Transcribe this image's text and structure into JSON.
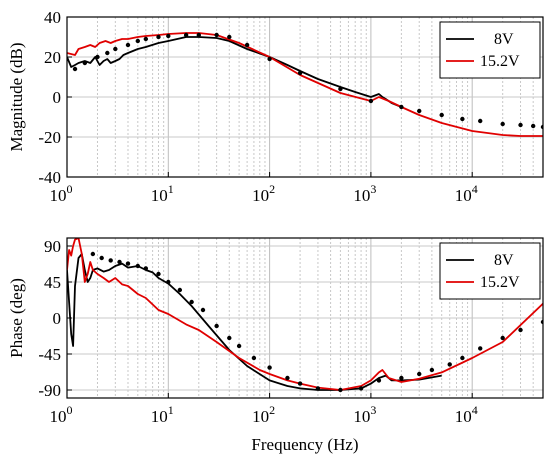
{
  "chart_data": [
    {
      "type": "line",
      "ylabel": "Magnitude (dB)",
      "xlabel": "",
      "xscale": "log",
      "xlim": [
        1,
        50000
      ],
      "ylim": [
        -40,
        40
      ],
      "yticks": [
        "40",
        "20",
        "0",
        "-20",
        "-40"
      ],
      "xticks": [
        {
          "base": "10",
          "exp": "0"
        },
        {
          "base": "10",
          "exp": "1"
        },
        {
          "base": "10",
          "exp": "2"
        },
        {
          "base": "10",
          "exp": "3"
        },
        {
          "base": "10",
          "exp": "4"
        }
      ],
      "grid": true,
      "legend_position": "top-right",
      "series": [
        {
          "name": "8V",
          "color": "#000000",
          "style": "line",
          "x": [
            1,
            1.1,
            1.2,
            1.3,
            1.5,
            1.7,
            1.9,
            2.1,
            2.3,
            2.5,
            2.7,
            3,
            3.3,
            3.6,
            4,
            5,
            6,
            8,
            10,
            15,
            20,
            30,
            40,
            60,
            100,
            150,
            200,
            300,
            500,
            700,
            1000,
            1200,
            1300,
            1400,
            1600,
            2000
          ],
          "y": [
            20,
            15,
            16,
            17,
            18,
            17,
            20,
            16,
            18,
            19,
            17,
            18,
            19,
            21,
            22,
            24,
            25,
            27,
            28,
            30,
            30,
            29.5,
            28,
            24,
            20,
            16,
            13,
            9,
            5,
            2.5,
            0,
            1.5,
            0,
            -1,
            -3,
            -5
          ]
        },
        {
          "name": "15.2V",
          "color": "#e00000",
          "style": "line",
          "x": [
            1,
            1.2,
            1.3,
            1.5,
            1.7,
            1.9,
            2.1,
            2.4,
            2.7,
            3,
            3.5,
            4,
            5,
            6,
            8,
            10,
            15,
            20,
            30,
            50,
            100,
            200,
            500,
            1000,
            1200,
            1500,
            2000,
            3000,
            5000,
            10000,
            20000,
            30000,
            50000
          ],
          "y": [
            22,
            21,
            24,
            25,
            26,
            25,
            27,
            28,
            27,
            28,
            29,
            29,
            30,
            30.5,
            31,
            31.5,
            32,
            32,
            31,
            27,
            20,
            11,
            2,
            -2,
            0,
            -2,
            -5,
            -9,
            -13,
            -17,
            -19,
            -19.5,
            -19.5
          ]
        },
        {
          "name": "",
          "color": "#000000",
          "style": "dots",
          "x": [
            1.2,
            1.5,
            2,
            2.5,
            3,
            4,
            5,
            6,
            8,
            10,
            15,
            20,
            30,
            40,
            60,
            100,
            200,
            500,
            1000,
            2000,
            3000,
            5000,
            8000,
            12000,
            20000,
            30000,
            40000,
            50000
          ],
          "y": [
            14,
            17,
            20,
            22,
            24,
            26,
            28,
            29,
            30,
            30.5,
            31,
            31,
            31,
            30,
            26,
            19,
            12,
            4,
            -2,
            -5,
            -7,
            -9,
            -11,
            -12,
            -13.5,
            -14,
            -14.5,
            -15
          ]
        }
      ]
    },
    {
      "type": "line",
      "ylabel": "Phase (deg)",
      "xlabel": "Frequency (Hz)",
      "xscale": "log",
      "xlim": [
        1,
        50000
      ],
      "ylim": [
        -100,
        100
      ],
      "yticks": [
        "90",
        "45",
        "0",
        "-45",
        "-90"
      ],
      "xticks": [
        {
          "base": "10",
          "exp": "0"
        },
        {
          "base": "10",
          "exp": "1"
        },
        {
          "base": "10",
          "exp": "2"
        },
        {
          "base": "10",
          "exp": "3"
        },
        {
          "base": "10",
          "exp": "4"
        }
      ],
      "grid": true,
      "legend_position": "top-right",
      "series": [
        {
          "name": "8V",
          "color": "#000000",
          "style": "line",
          "x": [
            1,
            1.05,
            1.1,
            1.15,
            1.2,
            1.3,
            1.4,
            1.5,
            1.6,
            1.7,
            1.8,
            2,
            2.3,
            2.6,
            3,
            3.5,
            4,
            5,
            6,
            7,
            8,
            10,
            13,
            17,
            25,
            40,
            60,
            100,
            150,
            200,
            300,
            500,
            800,
            1000,
            1200,
            1400,
            1600,
            2000,
            3000,
            5000
          ],
          "y": [
            60,
            20,
            -20,
            -35,
            40,
            75,
            80,
            60,
            45,
            50,
            60,
            62,
            58,
            60,
            65,
            68,
            63,
            65,
            60,
            57,
            50,
            43,
            30,
            15,
            -10,
            -40,
            -60,
            -78,
            -85,
            -88,
            -90,
            -90,
            -88,
            -82,
            -75,
            -72,
            -78,
            -78,
            -77,
            -72
          ]
        },
        {
          "name": "15.2V",
          "color": "#e00000",
          "style": "line",
          "x": [
            1,
            1.05,
            1.1,
            1.15,
            1.2,
            1.3,
            1.4,
            1.5,
            1.6,
            1.7,
            1.8,
            2,
            2.3,
            2.6,
            3,
            3.5,
            4,
            5,
            6,
            8,
            10,
            15,
            20,
            30,
            50,
            80,
            100,
            150,
            200,
            300,
            500,
            800,
            1000,
            1200,
            1300,
            1500,
            2000,
            3000,
            5000,
            10000,
            20000,
            50000
          ],
          "y": [
            60,
            85,
            78,
            90,
            98,
            100,
            80,
            45,
            55,
            70,
            60,
            55,
            50,
            45,
            50,
            42,
            40,
            30,
            25,
            10,
            5,
            -8,
            -15,
            -30,
            -50,
            -65,
            -70,
            -78,
            -82,
            -87,
            -90,
            -85,
            -78,
            -68,
            -65,
            -75,
            -80,
            -76,
            -68,
            -50,
            -30,
            18
          ]
        },
        {
          "name": "",
          "color": "#000000",
          "style": "dots",
          "x": [
            1.8,
            2.2,
            2.7,
            3.3,
            4,
            5,
            6,
            8,
            10,
            13,
            17,
            22,
            30,
            40,
            50,
            70,
            100,
            150,
            200,
            300,
            500,
            800,
            1200,
            2000,
            3000,
            4000,
            6000,
            8000,
            12000,
            20000,
            30000,
            50000
          ],
          "y": [
            80,
            75,
            72,
            70,
            68,
            65,
            62,
            55,
            45,
            35,
            20,
            10,
            -10,
            -25,
            -35,
            -50,
            -62,
            -75,
            -82,
            -88,
            -90,
            -88,
            -78,
            -75,
            -70,
            -65,
            -58,
            -50,
            -38,
            -25,
            -15,
            -5
          ]
        }
      ]
    }
  ]
}
